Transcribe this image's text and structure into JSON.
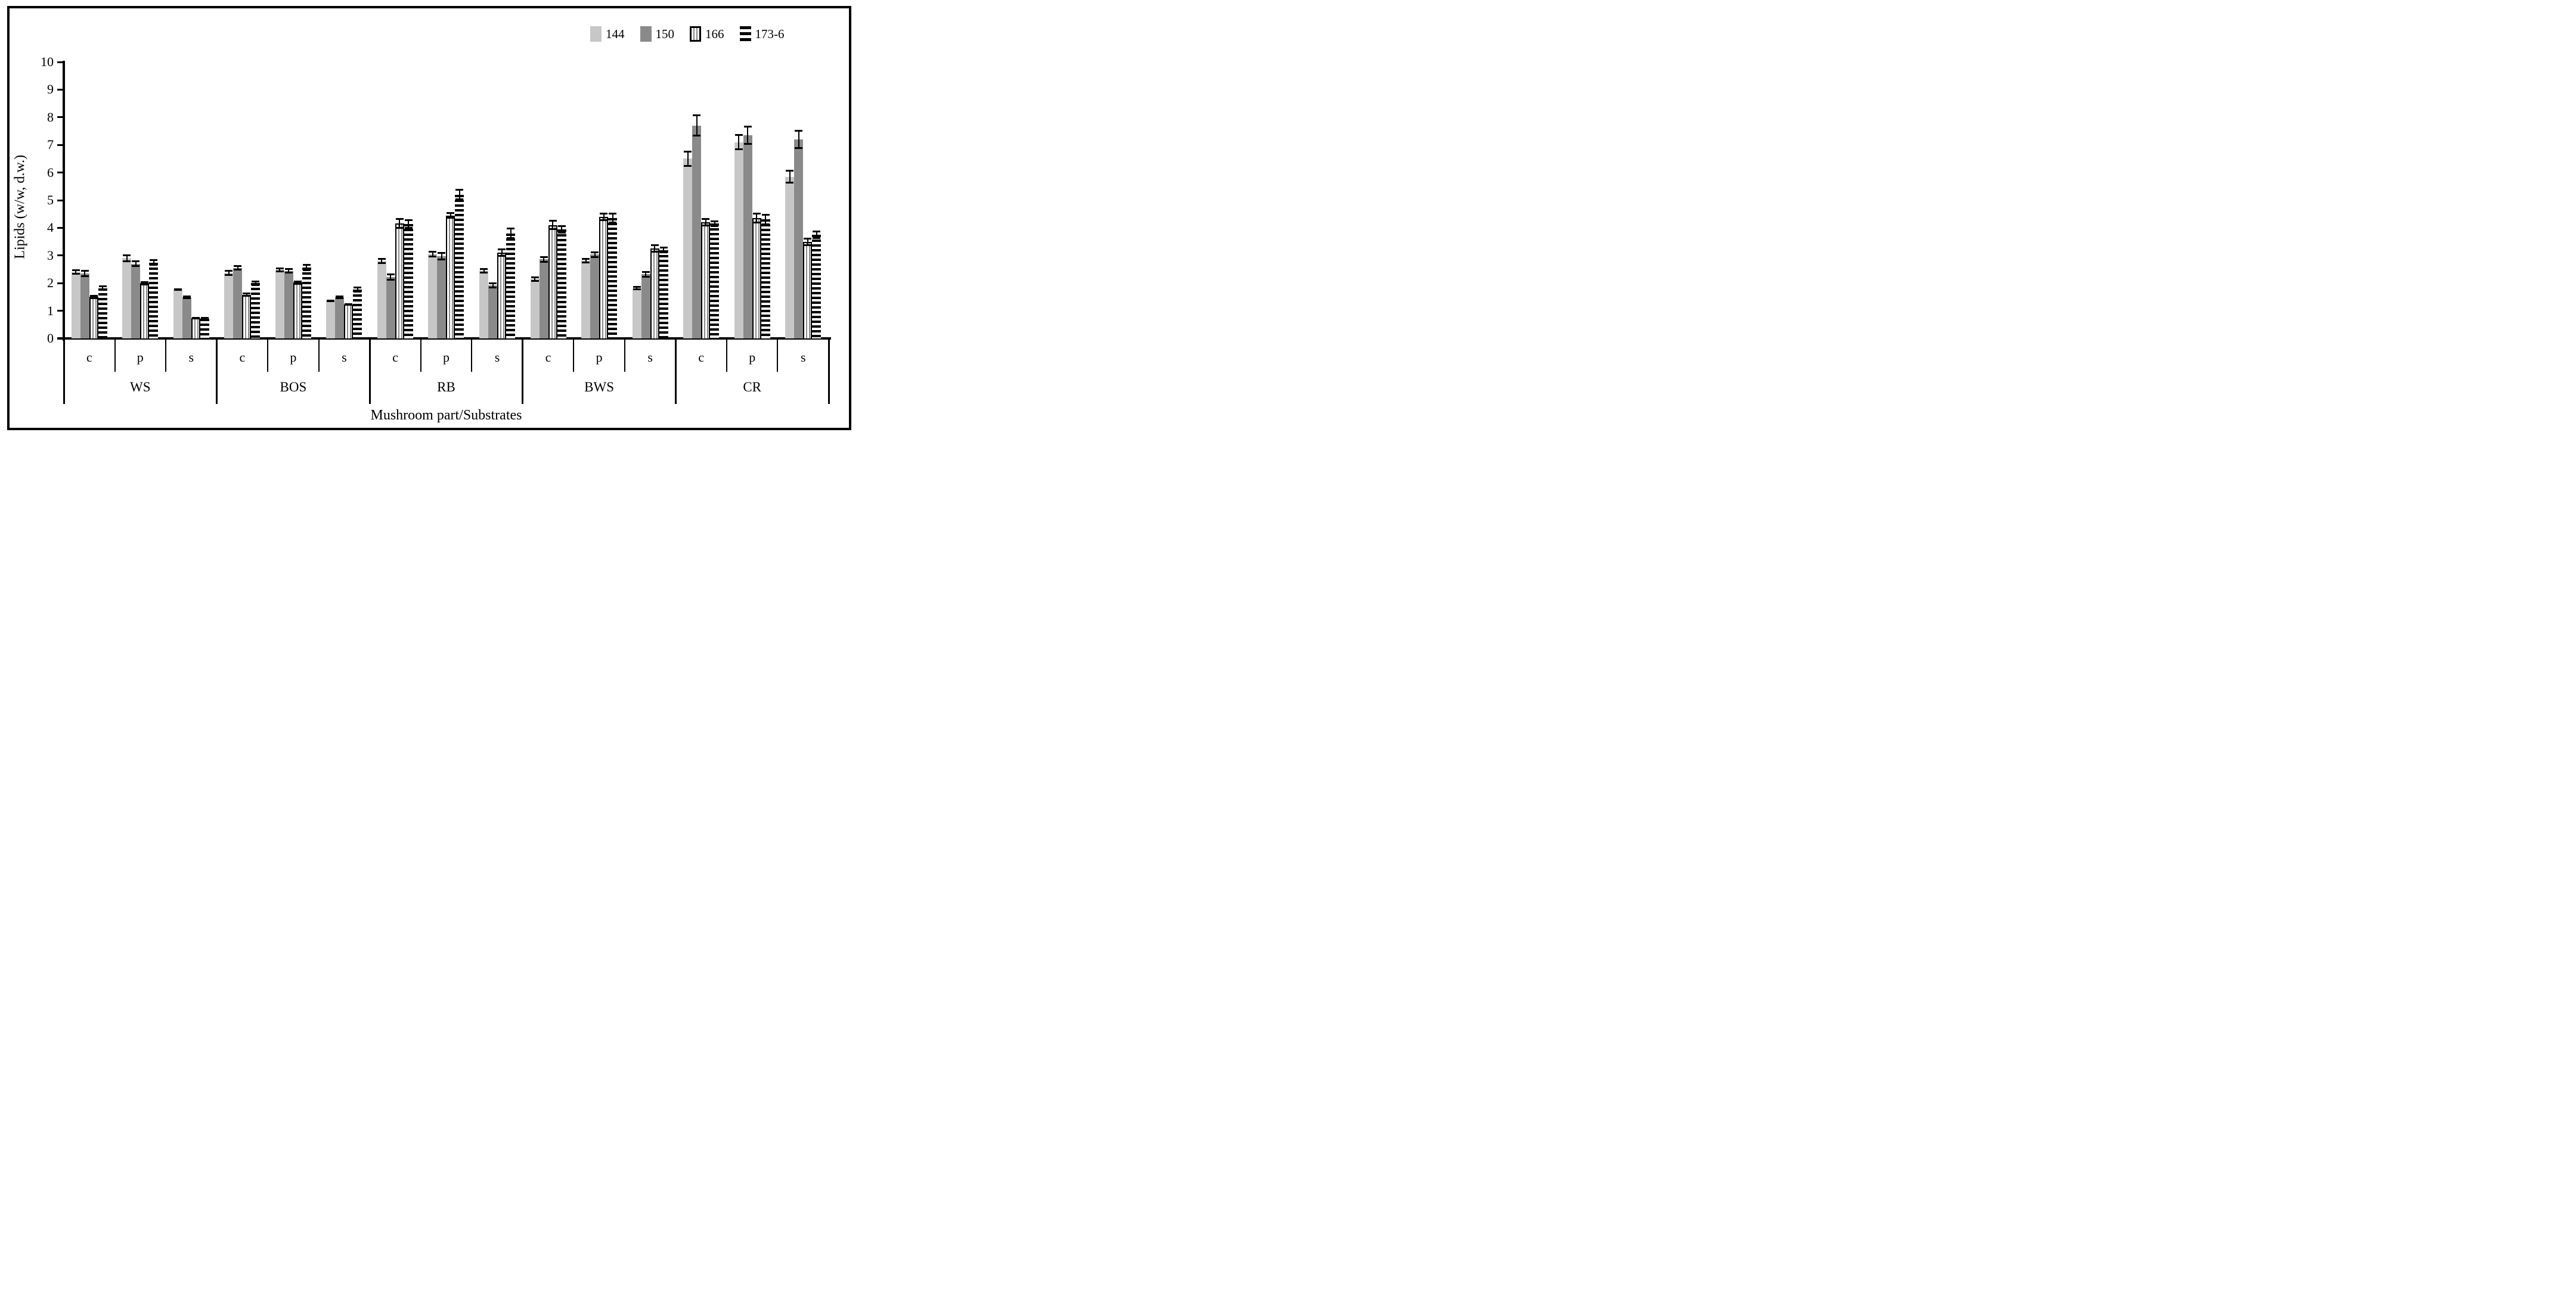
{
  "legend": {
    "items": [
      {
        "label": "144",
        "series": "s144"
      },
      {
        "label": "150",
        "series": "s150"
      },
      {
        "label": "166",
        "series": "s166"
      },
      {
        "label": "173-6",
        "series": "s173"
      }
    ]
  },
  "y_axis": {
    "title": "Lipids (w/w, d.w.)",
    "tick_labels": [
      "0",
      "1",
      "2",
      "3",
      "4",
      "5",
      "6",
      "7",
      "8",
      "9",
      "10"
    ],
    "min": 0,
    "max": 10
  },
  "x_axis": {
    "title": "Mushroom part/Substrates"
  },
  "colors": {
    "s144": "#c7c7c7",
    "s150": "#8a8a8a",
    "stripe_gray": "#8a8a8a",
    "stripe_black": "#000000",
    "axis": "#000000"
  },
  "chart_data": {
    "type": "bar",
    "title": "",
    "xlabel": "Mushroom part/Substrates",
    "ylabel": "Lipids (w/w, d.w.)",
    "ylim": [
      0,
      10
    ],
    "grid": false,
    "legend_position": "top-right",
    "series_names": [
      "144",
      "150",
      "166",
      "173-6"
    ],
    "series_styles": [
      {
        "name": "144",
        "pattern": "solid",
        "fill": "#c7c7c7"
      },
      {
        "name": "150",
        "pattern": "solid",
        "fill": "#8a8a8a"
      },
      {
        "name": "166",
        "pattern": "vstripe",
        "fill": "#ffffff"
      },
      {
        "name": "173-6",
        "pattern": "hstripe",
        "fill": "#000000"
      }
    ],
    "groups": [
      {
        "substrate": "WS",
        "parts": [
          {
            "part": "c",
            "values": [
              2.4,
              2.35,
              1.5,
              1.82
            ],
            "errors": [
              0.1,
              0.12,
              0.07,
              0.1
            ]
          },
          {
            "part": "p",
            "values": [
              2.9,
              2.7,
              2.0,
              2.74
            ],
            "errors": [
              0.15,
              0.12,
              0.08,
              0.12
            ]
          },
          {
            "part": "s",
            "values": [
              1.77,
              1.49,
              0.73,
              0.72
            ],
            "errors": [
              0.05,
              0.06,
              0.04,
              0.05
            ]
          }
        ]
      },
      {
        "substrate": "BOS",
        "parts": [
          {
            "part": "c",
            "values": [
              2.37,
              2.55,
              1.58,
              2.0
            ],
            "errors": [
              0.1,
              0.1,
              0.08,
              0.1
            ]
          },
          {
            "part": "p",
            "values": [
              2.48,
              2.44,
              2.02,
              2.56
            ],
            "errors": [
              0.08,
              0.1,
              0.08,
              0.13
            ]
          },
          {
            "part": "s",
            "values": [
              1.36,
              1.49,
              1.23,
              1.77
            ],
            "errors": [
              0.05,
              0.06,
              0.05,
              0.1
            ]
          }
        ]
      },
      {
        "substrate": "RB",
        "parts": [
          {
            "part": "c",
            "values": [
              2.8,
              2.22,
              4.16,
              4.14
            ],
            "errors": [
              0.1,
              0.12,
              0.2,
              0.18
            ]
          },
          {
            "part": "p",
            "values": [
              3.05,
              2.98,
              4.45,
              5.2
            ],
            "errors": [
              0.12,
              0.15,
              0.12,
              0.2
            ]
          },
          {
            "part": "s",
            "values": [
              2.45,
              1.92,
              3.1,
              3.8
            ],
            "errors": [
              0.1,
              0.1,
              0.15,
              0.2
            ]
          }
        ]
      },
      {
        "substrate": "BWS",
        "parts": [
          {
            "part": "c",
            "values": [
              2.15,
              2.86,
              4.1,
              3.95
            ],
            "errors": [
              0.1,
              0.12,
              0.18,
              0.15
            ]
          },
          {
            "part": "p",
            "values": [
              2.82,
              3.03,
              4.4,
              4.35
            ],
            "errors": [
              0.1,
              0.12,
              0.15,
              0.2
            ]
          },
          {
            "part": "s",
            "values": [
              1.82,
              2.32,
              3.25,
              3.2
            ],
            "errors": [
              0.08,
              0.12,
              0.15,
              0.12
            ]
          }
        ]
      },
      {
        "substrate": "CR",
        "parts": [
          {
            "part": "c",
            "values": [
              6.5,
              7.7,
              4.2,
              4.15
            ],
            "errors": [
              0.3,
              0.4,
              0.15,
              0.12
            ]
          },
          {
            "part": "p",
            "values": [
              7.1,
              7.35,
              4.35,
              4.3
            ],
            "errors": [
              0.3,
              0.35,
              0.2,
              0.2
            ]
          },
          {
            "part": "s",
            "values": [
              5.85,
              7.2,
              3.5,
              3.75
            ],
            "errors": [
              0.25,
              0.35,
              0.15,
              0.15
            ]
          }
        ]
      }
    ]
  }
}
